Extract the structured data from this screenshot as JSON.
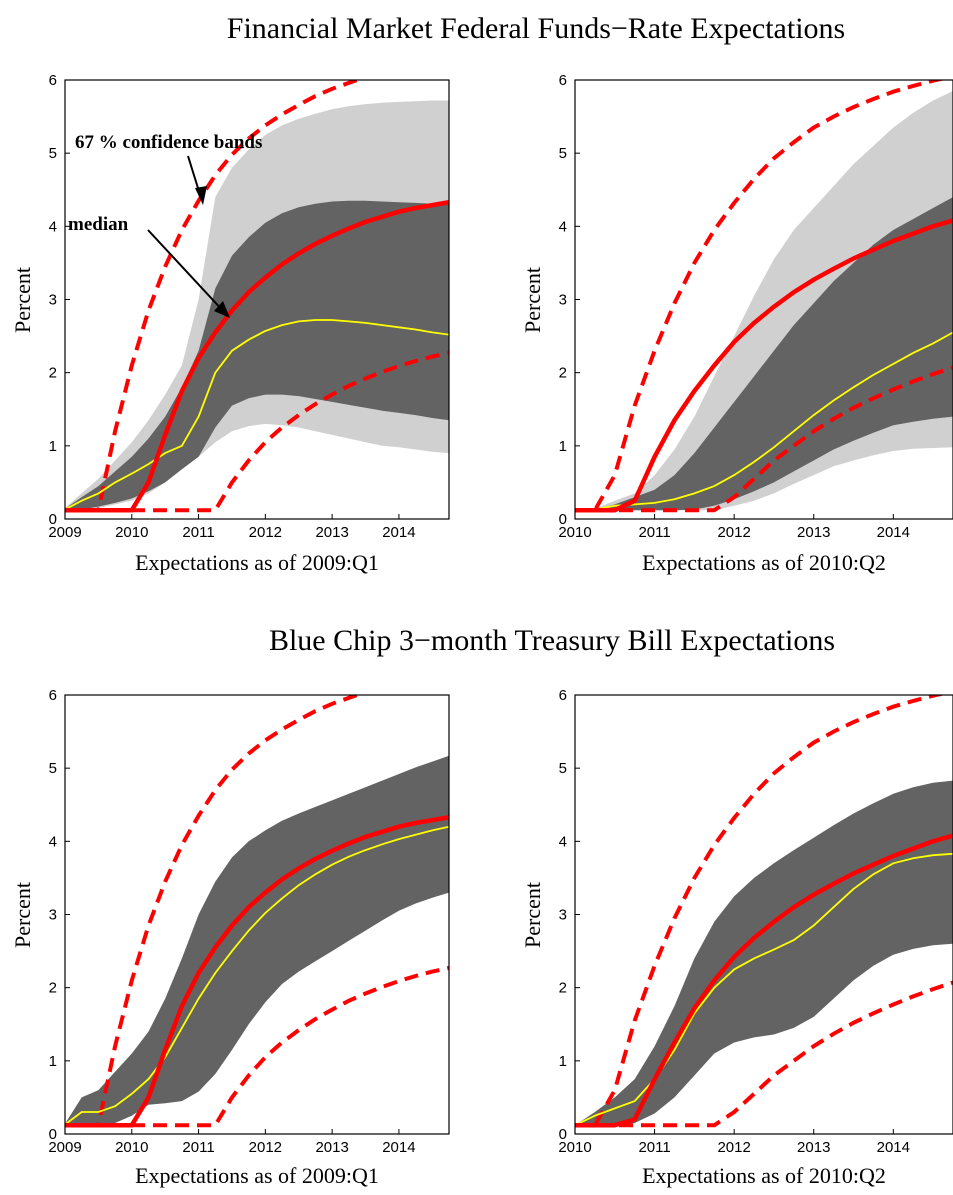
{
  "figure": {
    "section_titles": [
      "Financial Market Federal Funds−Rate Expectations",
      "Blue Chip 3−month Treasury Bill Expectations"
    ]
  },
  "colors": {
    "outer_band": "#d0d0d0",
    "inner_band": "#636363",
    "median_line": "#ffff00",
    "red_line": "#ff0000"
  },
  "chart_data": [
    {
      "type": "area",
      "section": 0,
      "ylabel": "Percent",
      "xlabel": "Expectations as of 2009:Q1",
      "xlim": [
        2009,
        2014.75
      ],
      "ylim": [
        0,
        6
      ],
      "xticks": [
        "2009",
        "2010",
        "2011",
        "2012",
        "2013",
        "2014"
      ],
      "yticks": [
        "0",
        "1",
        "2",
        "3",
        "4",
        "5",
        "6"
      ],
      "annotations": [
        "67 % confidence bands",
        "median"
      ],
      "x": [
        2009,
        2009.25,
        2009.5,
        2009.75,
        2010,
        2010.25,
        2010.5,
        2010.75,
        2011,
        2011.25,
        2011.5,
        2011.75,
        2012,
        2012.25,
        2012.5,
        2012.75,
        2013,
        2013.25,
        2013.5,
        2013.75,
        2014,
        2014.25,
        2014.5,
        2014.75
      ],
      "series": [
        {
          "role": "outer_band",
          "upper": [
            0.15,
            0.35,
            0.55,
            0.8,
            1.05,
            1.35,
            1.7,
            2.1,
            3.0,
            4.4,
            4.8,
            5.05,
            5.25,
            5.38,
            5.47,
            5.54,
            5.6,
            5.64,
            5.67,
            5.69,
            5.7,
            5.71,
            5.72,
            5.72
          ],
          "lower": [
            0.12,
            0.12,
            0.15,
            0.2,
            0.25,
            0.35,
            0.5,
            0.7,
            0.85,
            1.05,
            1.2,
            1.27,
            1.3,
            1.28,
            1.25,
            1.2,
            1.15,
            1.1,
            1.05,
            1.0,
            0.98,
            0.95,
            0.92,
            0.9
          ]
        },
        {
          "role": "inner_band",
          "upper": [
            0.14,
            0.3,
            0.45,
            0.65,
            0.85,
            1.1,
            1.4,
            1.8,
            2.3,
            3.15,
            3.6,
            3.85,
            4.05,
            4.18,
            4.26,
            4.31,
            4.34,
            4.35,
            4.35,
            4.34,
            4.33,
            4.32,
            4.31,
            4.3
          ],
          "lower": [
            0.12,
            0.13,
            0.17,
            0.22,
            0.28,
            0.38,
            0.5,
            0.68,
            0.85,
            1.25,
            1.55,
            1.65,
            1.7,
            1.7,
            1.68,
            1.64,
            1.6,
            1.56,
            1.52,
            1.48,
            1.45,
            1.42,
            1.38,
            1.35
          ]
        },
        {
          "role": "median",
          "values": [
            0.13,
            0.25,
            0.35,
            0.5,
            0.62,
            0.75,
            0.9,
            1.0,
            1.4,
            2.0,
            2.3,
            2.45,
            2.57,
            2.65,
            2.7,
            2.72,
            2.72,
            2.7,
            2.68,
            2.65,
            2.62,
            2.59,
            2.55,
            2.52
          ]
        },
        {
          "role": "red_solid",
          "values": [
            0.12,
            0.12,
            0.12,
            0.12,
            0.12,
            0.5,
            1.15,
            1.75,
            2.2,
            2.55,
            2.85,
            3.1,
            3.3,
            3.48,
            3.63,
            3.76,
            3.87,
            3.97,
            4.06,
            4.13,
            4.2,
            4.25,
            4.29,
            4.33
          ]
        },
        {
          "role": "red_dashed_upper",
          "values": [
            0.12,
            0.12,
            0.12,
            1.2,
            2.1,
            2.85,
            3.45,
            3.95,
            4.35,
            4.7,
            4.98,
            5.2,
            5.38,
            5.53,
            5.66,
            5.78,
            5.88,
            5.96,
            6.04,
            6.1,
            6.16,
            6.21,
            6.25,
            6.28
          ]
        },
        {
          "role": "red_dashed_lower",
          "values": [
            0.12,
            0.12,
            0.12,
            0.12,
            0.12,
            0.12,
            0.12,
            0.12,
            0.12,
            0.12,
            0.5,
            0.8,
            1.05,
            1.25,
            1.42,
            1.57,
            1.7,
            1.82,
            1.92,
            2.01,
            2.09,
            2.16,
            2.22,
            2.27
          ]
        }
      ]
    },
    {
      "type": "area",
      "section": 0,
      "ylabel": "Percent",
      "xlabel": "Expectations as of 2010:Q2",
      "xlim": [
        2010,
        2014.75
      ],
      "ylim": [
        0,
        6
      ],
      "xticks": [
        "2010",
        "2011",
        "2012",
        "2013",
        "2014"
      ],
      "yticks": [
        "0",
        "1",
        "2",
        "3",
        "4",
        "5",
        "6"
      ],
      "x": [
        2010,
        2010.25,
        2010.5,
        2010.75,
        2011,
        2011.25,
        2011.5,
        2011.75,
        2012,
        2012.25,
        2012.5,
        2012.75,
        2013,
        2013.25,
        2013.5,
        2013.75,
        2014,
        2014.25,
        2014.5,
        2014.75
      ],
      "series": [
        {
          "role": "outer_band",
          "upper": [
            0.12,
            0.14,
            0.25,
            0.35,
            0.6,
            0.95,
            1.4,
            1.95,
            2.5,
            3.05,
            3.55,
            3.95,
            4.25,
            4.55,
            4.85,
            5.1,
            5.35,
            5.55,
            5.72,
            5.85
          ],
          "lower": [
            0.12,
            0.12,
            0.12,
            0.12,
            0.12,
            0.12,
            0.12,
            0.12,
            0.18,
            0.25,
            0.35,
            0.48,
            0.6,
            0.72,
            0.8,
            0.87,
            0.93,
            0.96,
            0.97,
            0.98
          ]
        },
        {
          "role": "inner_band",
          "upper": [
            0.12,
            0.13,
            0.2,
            0.3,
            0.4,
            0.6,
            0.9,
            1.25,
            1.6,
            1.95,
            2.3,
            2.65,
            2.95,
            3.25,
            3.5,
            3.75,
            3.95,
            4.1,
            4.25,
            4.4
          ],
          "lower": [
            0.12,
            0.12,
            0.12,
            0.12,
            0.12,
            0.12,
            0.13,
            0.18,
            0.27,
            0.38,
            0.5,
            0.65,
            0.8,
            0.95,
            1.07,
            1.18,
            1.28,
            1.33,
            1.37,
            1.4
          ]
        },
        {
          "role": "median",
          "values": [
            0.12,
            0.13,
            0.18,
            0.2,
            0.22,
            0.27,
            0.35,
            0.45,
            0.6,
            0.78,
            0.98,
            1.2,
            1.42,
            1.62,
            1.8,
            1.97,
            2.12,
            2.27,
            2.4,
            2.55
          ]
        },
        {
          "role": "red_solid",
          "values": [
            0.12,
            0.12,
            0.12,
            0.25,
            0.85,
            1.35,
            1.75,
            2.1,
            2.42,
            2.68,
            2.9,
            3.1,
            3.27,
            3.42,
            3.56,
            3.68,
            3.8,
            3.9,
            4.0,
            4.08
          ]
        },
        {
          "role": "red_dashed_upper",
          "values": [
            0.12,
            0.12,
            0.6,
            1.55,
            2.3,
            2.95,
            3.5,
            3.95,
            4.32,
            4.65,
            4.93,
            5.15,
            5.35,
            5.5,
            5.63,
            5.74,
            5.84,
            5.92,
            5.99,
            6.05
          ]
        },
        {
          "role": "red_dashed_lower",
          "values": [
            0.12,
            0.12,
            0.12,
            0.12,
            0.12,
            0.12,
            0.12,
            0.12,
            0.3,
            0.55,
            0.8,
            1.0,
            1.2,
            1.37,
            1.52,
            1.65,
            1.77,
            1.88,
            1.98,
            2.07
          ]
        }
      ]
    },
    {
      "type": "area",
      "section": 1,
      "ylabel": "Percent",
      "xlabel": "Expectations as of 2009:Q1",
      "xlim": [
        2009,
        2014.75
      ],
      "ylim": [
        0,
        6
      ],
      "xticks": [
        "2009",
        "2010",
        "2011",
        "2012",
        "2013",
        "2014"
      ],
      "yticks": [
        "0",
        "1",
        "2",
        "3",
        "4",
        "5",
        "6"
      ],
      "x": [
        2009,
        2009.25,
        2009.5,
        2009.75,
        2010,
        2010.25,
        2010.5,
        2010.75,
        2011,
        2011.25,
        2011.5,
        2011.75,
        2012,
        2012.25,
        2012.5,
        2012.75,
        2013,
        2013.25,
        2013.5,
        2013.75,
        2014,
        2014.25,
        2014.5,
        2014.75
      ],
      "series": [
        {
          "role": "inner_band",
          "upper": [
            0.14,
            0.5,
            0.6,
            0.85,
            1.1,
            1.4,
            1.85,
            2.4,
            3.0,
            3.45,
            3.78,
            4.0,
            4.15,
            4.28,
            4.38,
            4.47,
            4.56,
            4.65,
            4.74,
            4.83,
            4.92,
            5.01,
            5.09,
            5.17
          ],
          "lower": [
            0.12,
            0.12,
            0.12,
            0.15,
            0.25,
            0.4,
            0.42,
            0.45,
            0.58,
            0.82,
            1.15,
            1.5,
            1.8,
            2.05,
            2.22,
            2.36,
            2.5,
            2.64,
            2.78,
            2.92,
            3.05,
            3.15,
            3.23,
            3.3
          ]
        },
        {
          "role": "median",
          "values": [
            0.13,
            0.3,
            0.3,
            0.38,
            0.55,
            0.75,
            1.05,
            1.45,
            1.85,
            2.2,
            2.5,
            2.78,
            3.02,
            3.22,
            3.4,
            3.55,
            3.68,
            3.79,
            3.88,
            3.96,
            4.03,
            4.09,
            4.15,
            4.2
          ]
        },
        {
          "role": "red_solid",
          "values": [
            0.12,
            0.12,
            0.12,
            0.12,
            0.12,
            0.5,
            1.15,
            1.75,
            2.2,
            2.55,
            2.85,
            3.1,
            3.3,
            3.48,
            3.63,
            3.76,
            3.87,
            3.97,
            4.06,
            4.13,
            4.2,
            4.25,
            4.29,
            4.33
          ]
        },
        {
          "role": "red_dashed_upper",
          "values": [
            0.12,
            0.12,
            0.12,
            1.2,
            2.1,
            2.85,
            3.45,
            3.95,
            4.35,
            4.7,
            4.98,
            5.2,
            5.38,
            5.53,
            5.66,
            5.78,
            5.88,
            5.96,
            6.04,
            6.1,
            6.16,
            6.21,
            6.25,
            6.28
          ]
        },
        {
          "role": "red_dashed_lower",
          "values": [
            0.12,
            0.12,
            0.12,
            0.12,
            0.12,
            0.12,
            0.12,
            0.12,
            0.12,
            0.12,
            0.5,
            0.8,
            1.05,
            1.25,
            1.42,
            1.57,
            1.7,
            1.82,
            1.92,
            2.01,
            2.09,
            2.16,
            2.22,
            2.27
          ]
        }
      ]
    },
    {
      "type": "area",
      "section": 1,
      "ylabel": "Percent",
      "xlabel": "Expectations as of 2010:Q2",
      "xlim": [
        2010,
        2014.75
      ],
      "ylim": [
        0,
        6
      ],
      "xticks": [
        "2010",
        "2011",
        "2012",
        "2013",
        "2014"
      ],
      "yticks": [
        "0",
        "1",
        "2",
        "3",
        "4",
        "5",
        "6"
      ],
      "x": [
        2010,
        2010.25,
        2010.5,
        2010.75,
        2011,
        2011.25,
        2011.5,
        2011.75,
        2012,
        2012.25,
        2012.5,
        2012.75,
        2013,
        2013.25,
        2013.5,
        2013.75,
        2014,
        2014.25,
        2014.5,
        2014.75
      ],
      "series": [
        {
          "role": "inner_band",
          "upper": [
            0.12,
            0.3,
            0.5,
            0.75,
            1.2,
            1.75,
            2.4,
            2.9,
            3.25,
            3.5,
            3.7,
            3.88,
            4.05,
            4.22,
            4.38,
            4.52,
            4.65,
            4.74,
            4.8,
            4.83
          ],
          "lower": [
            0.12,
            0.12,
            0.12,
            0.15,
            0.28,
            0.5,
            0.8,
            1.1,
            1.25,
            1.32,
            1.36,
            1.45,
            1.6,
            1.85,
            2.1,
            2.3,
            2.45,
            2.53,
            2.58,
            2.6
          ]
        },
        {
          "role": "median",
          "values": [
            0.12,
            0.25,
            0.35,
            0.45,
            0.75,
            1.15,
            1.65,
            2.0,
            2.25,
            2.4,
            2.52,
            2.65,
            2.85,
            3.1,
            3.35,
            3.55,
            3.7,
            3.77,
            3.81,
            3.83
          ]
        },
        {
          "role": "red_solid",
          "values": [
            0.12,
            0.12,
            0.12,
            0.2,
            0.75,
            1.25,
            1.72,
            2.1,
            2.42,
            2.68,
            2.9,
            3.1,
            3.27,
            3.42,
            3.56,
            3.68,
            3.8,
            3.9,
            4.0,
            4.08
          ]
        },
        {
          "role": "red_dashed_upper",
          "values": [
            0.12,
            0.12,
            0.6,
            1.55,
            2.3,
            2.95,
            3.5,
            3.95,
            4.32,
            4.65,
            4.93,
            5.15,
            5.35,
            5.5,
            5.63,
            5.74,
            5.84,
            5.92,
            5.99,
            6.05
          ]
        },
        {
          "role": "red_dashed_lower",
          "values": [
            0.12,
            0.12,
            0.12,
            0.12,
            0.12,
            0.12,
            0.12,
            0.12,
            0.3,
            0.55,
            0.8,
            1.0,
            1.2,
            1.37,
            1.52,
            1.65,
            1.77,
            1.88,
            1.98,
            2.07
          ]
        }
      ]
    }
  ]
}
